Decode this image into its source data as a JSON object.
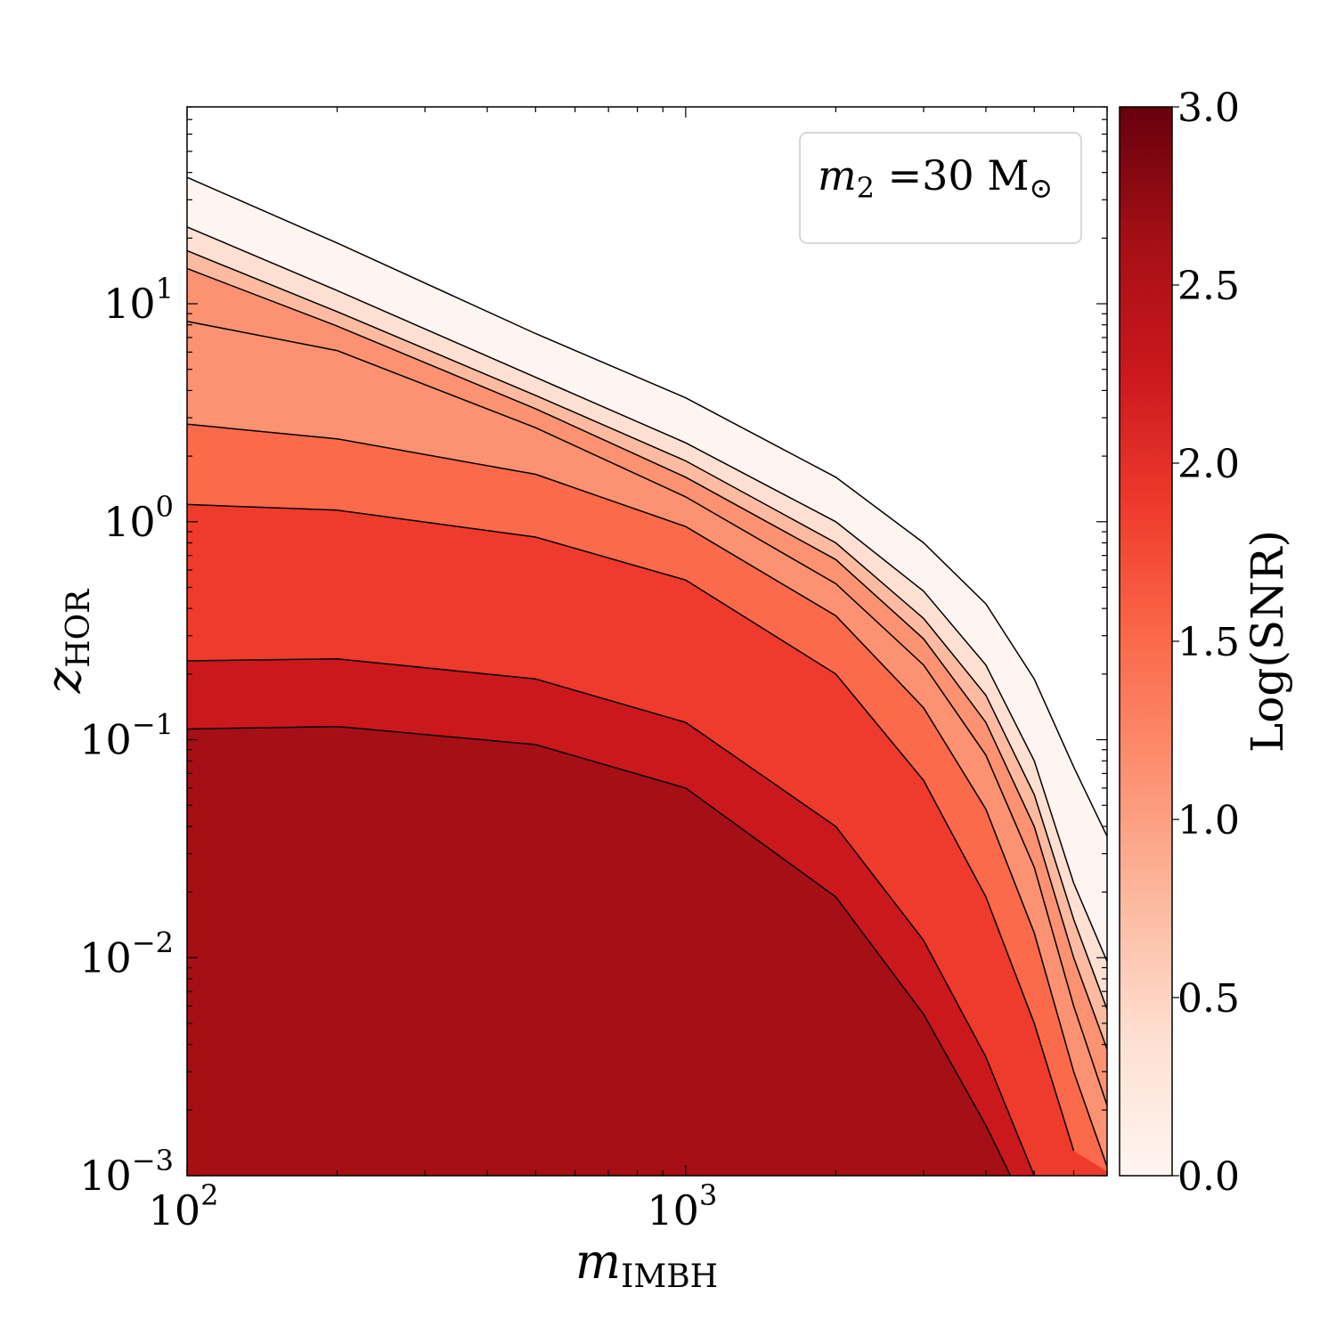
{
  "chart_data": {
    "type": "contourf",
    "title": "",
    "xlabel": {
      "base": "m",
      "sub": "IMBH"
    },
    "ylabel": {
      "base": "z",
      "sub": "HOR"
    },
    "xscale": "log",
    "yscale": "log",
    "xlim": [
      100,
      7000
    ],
    "ylim": [
      0.001,
      80
    ],
    "x_ticks": [
      {
        "value": 100,
        "base": "10",
        "exp": "2"
      },
      {
        "value": 1000,
        "base": "10",
        "exp": "3"
      }
    ],
    "y_ticks": [
      {
        "value": 0.001,
        "base": "10",
        "exp": "−3"
      },
      {
        "value": 0.01,
        "base": "10",
        "exp": "−2"
      },
      {
        "value": 0.1,
        "base": "10",
        "exp": "−1"
      },
      {
        "value": 1,
        "base": "10",
        "exp": "0"
      },
      {
        "value": 10,
        "base": "10",
        "exp": "1"
      }
    ],
    "legend": {
      "placement": "top-right",
      "base": "m",
      "sub": "2",
      "eq": " =30 ",
      "unit": "M",
      "unit_sub": "⊙"
    },
    "colorbar": {
      "label": "Log(SNR)",
      "range": [
        0.0,
        3.0
      ],
      "tick_labels": [
        "0.0",
        "0.5",
        "1.0",
        "1.5",
        "2.0",
        "2.5",
        "3.0"
      ],
      "colormap": "Reds",
      "colors": [
        "#fff5f0",
        "#fee0d2",
        "#fcbba1",
        "#fc9272",
        "#fb6a4a",
        "#ef3b2c",
        "#cb181d",
        "#a50f15",
        "#67000d"
      ]
    },
    "contour_boundaries": [
      {
        "level": 0.0,
        "points": [
          [
            100,
            38
          ],
          [
            200,
            19
          ],
          [
            500,
            7.3
          ],
          [
            1000,
            3.7
          ],
          [
            2000,
            1.6
          ],
          [
            3000,
            0.8
          ],
          [
            4000,
            0.42
          ],
          [
            5000,
            0.19
          ],
          [
            6000,
            0.075
          ],
          [
            7000,
            0.036
          ]
        ]
      },
      {
        "level": 0.5,
        "points": [
          [
            100,
            22.5
          ],
          [
            200,
            11.5
          ],
          [
            500,
            4.6
          ],
          [
            1000,
            2.3
          ],
          [
            2000,
            1.0
          ],
          [
            3000,
            0.48
          ],
          [
            4000,
            0.22
          ],
          [
            5000,
            0.08
          ],
          [
            6000,
            0.022
          ],
          [
            7000,
            0.0096
          ]
        ]
      },
      {
        "level": 0.8,
        "points": [
          [
            100,
            17.5
          ],
          [
            200,
            9.2
          ],
          [
            500,
            3.8
          ],
          [
            1000,
            1.9
          ],
          [
            2000,
            0.8
          ],
          [
            3000,
            0.36
          ],
          [
            4000,
            0.16
          ],
          [
            5000,
            0.056
          ],
          [
            6000,
            0.015
          ],
          [
            7000,
            0.0058
          ]
        ]
      },
      {
        "level": 1.0,
        "points": [
          [
            100,
            14.5
          ],
          [
            200,
            7.9
          ],
          [
            500,
            3.3
          ],
          [
            1000,
            1.6
          ],
          [
            2000,
            0.67
          ],
          [
            3000,
            0.29
          ],
          [
            4000,
            0.12
          ],
          [
            5000,
            0.04
          ],
          [
            6000,
            0.01
          ],
          [
            7000,
            0.0038
          ]
        ]
      },
      {
        "level": 1.3,
        "points": [
          [
            100,
            8.3
          ],
          [
            200,
            6.1
          ],
          [
            500,
            2.7
          ],
          [
            1000,
            1.3
          ],
          [
            2000,
            0.52
          ],
          [
            3000,
            0.22
          ],
          [
            4000,
            0.085
          ],
          [
            5000,
            0.026
          ],
          [
            6000,
            0.006
          ],
          [
            7000,
            0.0021
          ]
        ]
      },
      {
        "level": 1.6,
        "points": [
          [
            100,
            2.8
          ],
          [
            200,
            2.4
          ],
          [
            500,
            1.65
          ],
          [
            1000,
            0.95
          ],
          [
            2000,
            0.37
          ],
          [
            3000,
            0.14
          ],
          [
            4000,
            0.048
          ],
          [
            5000,
            0.013
          ],
          [
            6000,
            0.003
          ],
          [
            7000,
            0.0011
          ]
        ]
      },
      {
        "level": 1.9,
        "points": [
          [
            100,
            1.2
          ],
          [
            200,
            1.13
          ],
          [
            500,
            0.85
          ],
          [
            1000,
            0.54
          ],
          [
            2000,
            0.2
          ],
          [
            3000,
            0.065
          ],
          [
            4000,
            0.019
          ],
          [
            5000,
            0.005
          ],
          [
            6000,
            0.0013
          ]
        ]
      },
      {
        "level": 2.4,
        "points": [
          [
            100,
            0.23
          ],
          [
            200,
            0.235
          ],
          [
            500,
            0.19
          ],
          [
            1000,
            0.12
          ],
          [
            2000,
            0.04
          ],
          [
            3000,
            0.012
          ],
          [
            4000,
            0.0035
          ],
          [
            5000,
            0.001
          ]
        ]
      },
      {
        "level": 2.7,
        "points": [
          [
            100,
            0.112
          ],
          [
            200,
            0.115
          ],
          [
            500,
            0.095
          ],
          [
            1000,
            0.06
          ],
          [
            2000,
            0.019
          ],
          [
            3000,
            0.0055
          ],
          [
            4000,
            0.0017
          ],
          [
            5000,
            0.0006
          ]
        ]
      }
    ]
  }
}
